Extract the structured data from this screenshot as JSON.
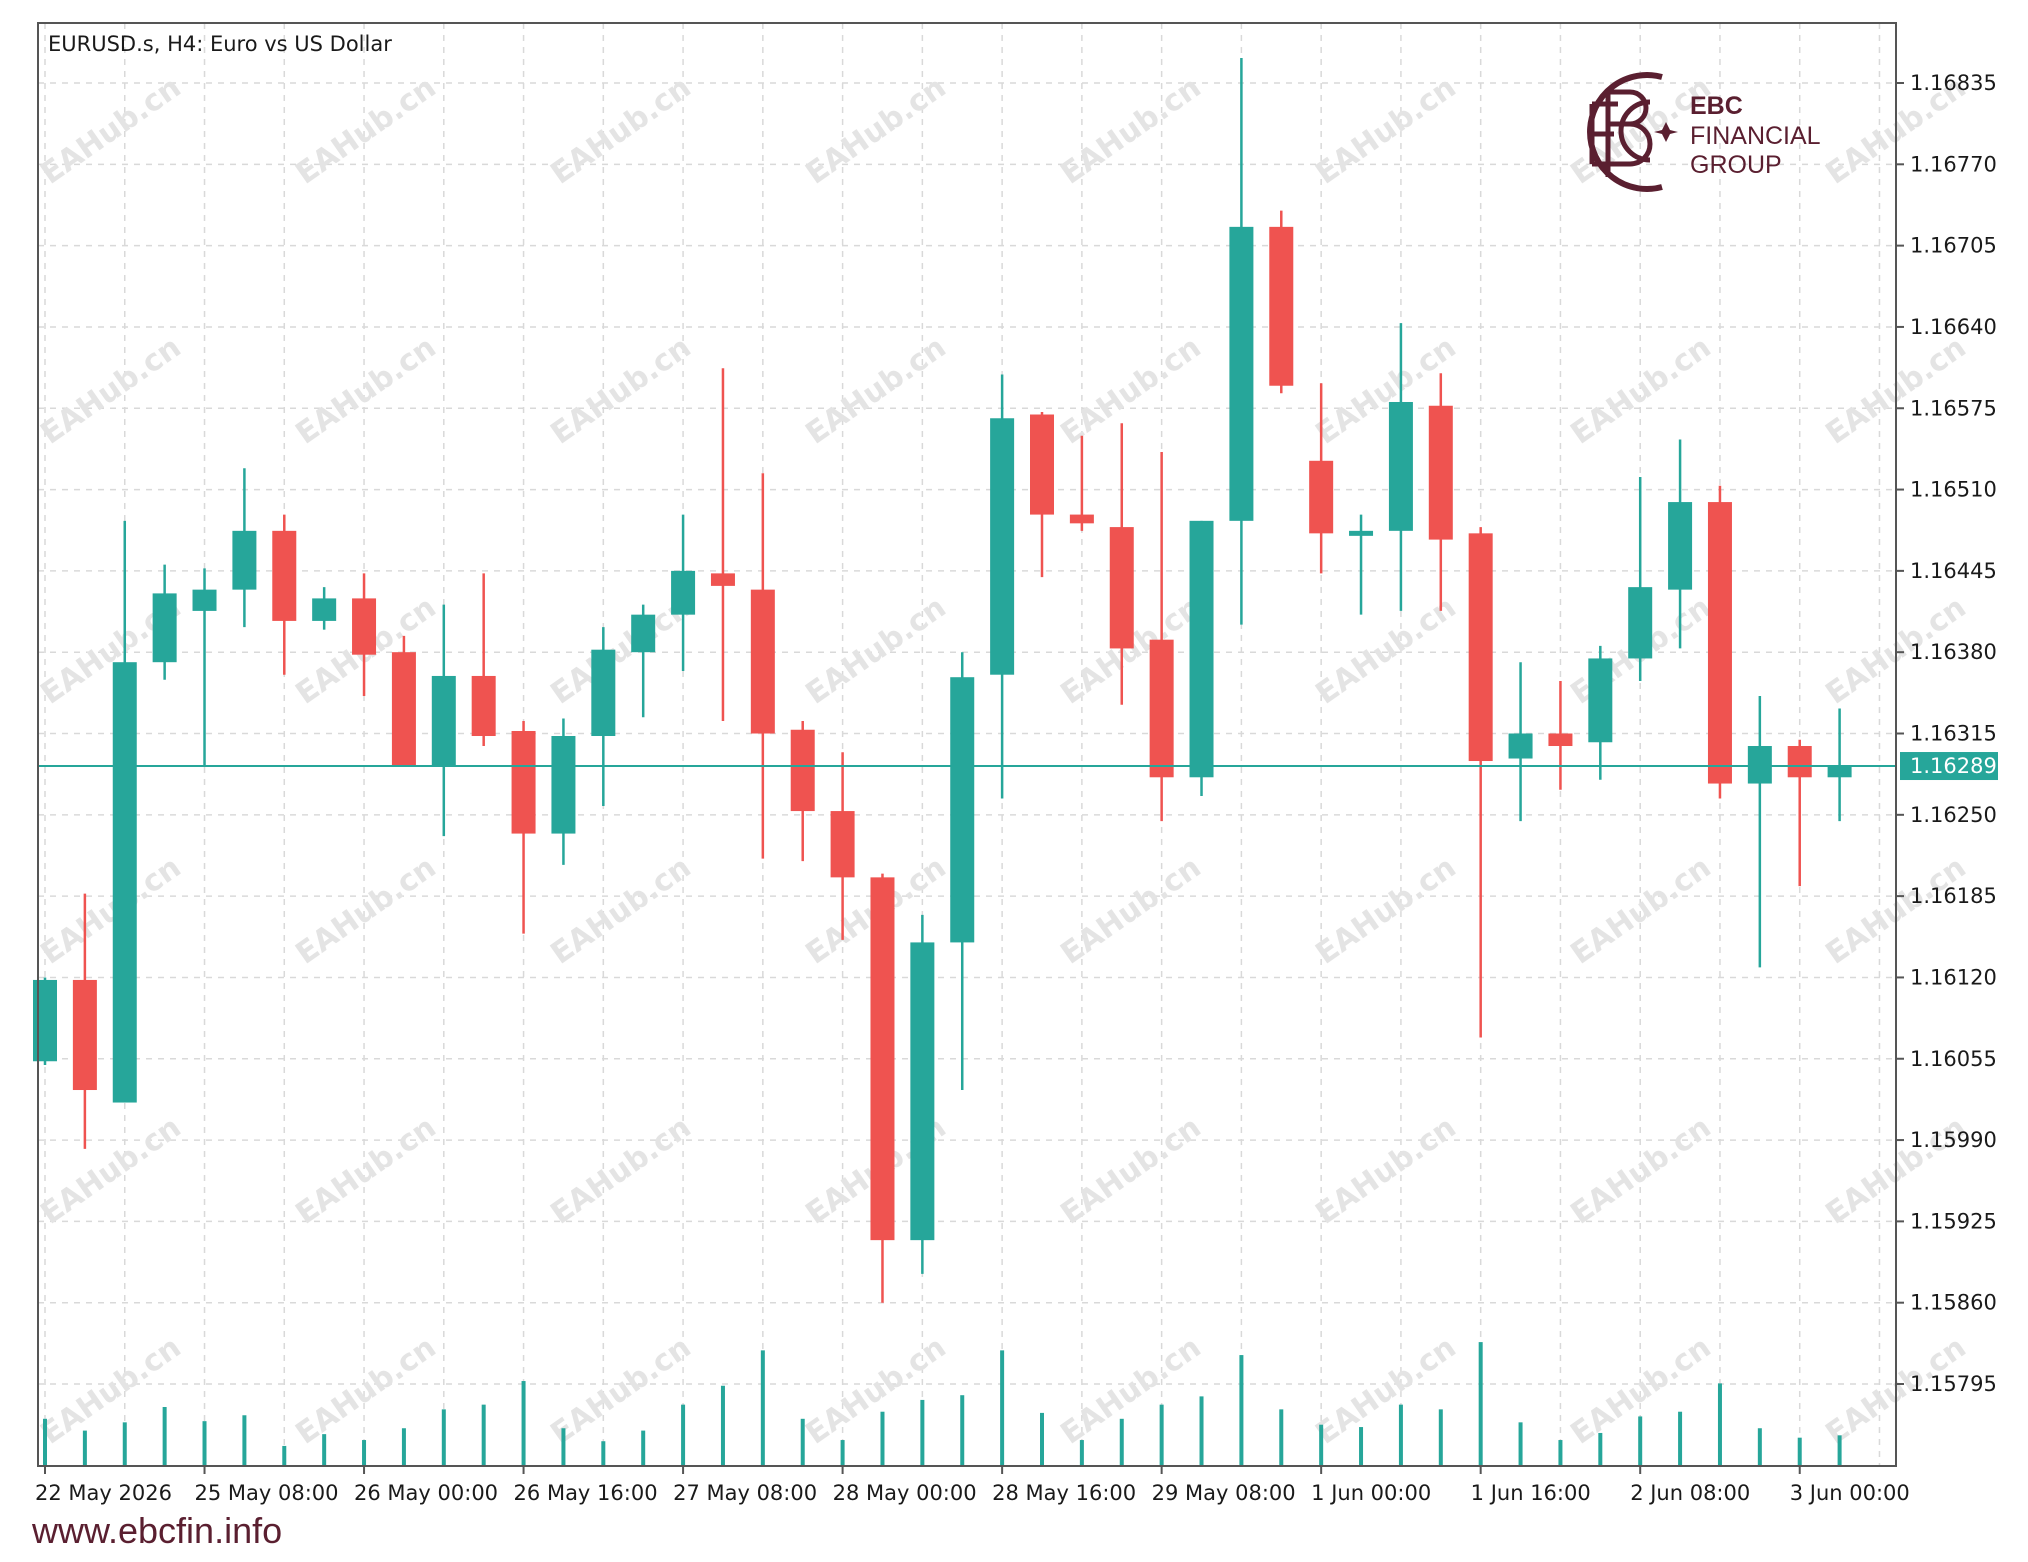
{
  "symbol_title": "EURUSD.s, H4:  Euro vs US Dollar",
  "brand": {
    "name_line1": "EBC",
    "name_line2": "FINANCIAL",
    "name_line3": "GROUP",
    "color": "#5a1f30",
    "logo_icon": "ebc-logo-icon"
  },
  "website": "www.ebcfin.info",
  "watermark": "EAHub.cn",
  "colors": {
    "bull": "#26a69a",
    "bear": "#ef5350",
    "grid": "#d9d9d9",
    "current_price_bg": "#26a69a",
    "volume": "#26a69a"
  },
  "chart_data": {
    "type": "candlestick",
    "timeframe": "H4",
    "symbol": "EURUSD.s",
    "ylim": [
      1.1573,
      1.169
    ],
    "y_ticks": [
      "1.16835",
      "1.16770",
      "1.16705",
      "1.16640",
      "1.16575",
      "1.16510",
      "1.16445",
      "1.16380",
      "1.16315",
      "1.16250",
      "1.16185",
      "1.16120",
      "1.16055",
      "1.15990",
      "1.15925",
      "1.15860",
      "1.15795"
    ],
    "current_price": "1.16289",
    "x_labels": [
      {
        "index": 0,
        "text": "22 May 2026"
      },
      {
        "index": 4,
        "text": "25 May 08:00"
      },
      {
        "index": 8,
        "text": "26 May 00:00"
      },
      {
        "index": 12,
        "text": "26 May 16:00"
      },
      {
        "index": 16,
        "text": "27 May 08:00"
      },
      {
        "index": 20,
        "text": "28 May 00:00"
      },
      {
        "index": 24,
        "text": "28 May 16:00"
      },
      {
        "index": 28,
        "text": "29 May 08:00"
      },
      {
        "index": 32,
        "text": "1 Jun 00:00"
      },
      {
        "index": 36,
        "text": "1 Jun 16:00"
      },
      {
        "index": 40,
        "text": "2 Jun 08:00"
      },
      {
        "index": 44,
        "text": "3 Jun 00:00"
      }
    ],
    "candles": [
      {
        "o": 1.16053,
        "h": 1.1612,
        "l": 1.1605,
        "c": 1.16118
      },
      {
        "o": 1.16118,
        "h": 1.16187,
        "l": 1.15983,
        "c": 1.1603
      },
      {
        "o": 1.1602,
        "h": 1.16485,
        "l": 1.1602,
        "c": 1.16372
      },
      {
        "o": 1.16372,
        "h": 1.1645,
        "l": 1.16358,
        "c": 1.16427
      },
      {
        "o": 1.16413,
        "h": 1.16447,
        "l": 1.16289,
        "c": 1.1643
      },
      {
        "o": 1.1643,
        "h": 1.16527,
        "l": 1.164,
        "c": 1.16477
      },
      {
        "o": 1.16477,
        "h": 1.1649,
        "l": 1.16362,
        "c": 1.16405
      },
      {
        "o": 1.16405,
        "h": 1.16432,
        "l": 1.16398,
        "c": 1.16423
      },
      {
        "o": 1.16423,
        "h": 1.16443,
        "l": 1.16345,
        "c": 1.16378
      },
      {
        "o": 1.1638,
        "h": 1.16393,
        "l": 1.16289,
        "c": 1.16289
      },
      {
        "o": 1.16289,
        "h": 1.16418,
        "l": 1.16233,
        "c": 1.16361
      },
      {
        "o": 1.16361,
        "h": 1.16443,
        "l": 1.16305,
        "c": 1.16313
      },
      {
        "o": 1.16317,
        "h": 1.16325,
        "l": 1.16155,
        "c": 1.16235
      },
      {
        "o": 1.16235,
        "h": 1.16327,
        "l": 1.1621,
        "c": 1.16313
      },
      {
        "o": 1.16313,
        "h": 1.164,
        "l": 1.16257,
        "c": 1.16382
      },
      {
        "o": 1.1638,
        "h": 1.16418,
        "l": 1.16328,
        "c": 1.1641
      },
      {
        "o": 1.1641,
        "h": 1.1649,
        "l": 1.16365,
        "c": 1.16445
      },
      {
        "o": 1.16443,
        "h": 1.16607,
        "l": 1.16325,
        "c": 1.16433
      },
      {
        "o": 1.1643,
        "h": 1.16523,
        "l": 1.16215,
        "c": 1.16315
      },
      {
        "o": 1.16318,
        "h": 1.16325,
        "l": 1.16213,
        "c": 1.16253
      },
      {
        "o": 1.16253,
        "h": 1.163,
        "l": 1.1615,
        "c": 1.162
      },
      {
        "o": 1.162,
        "h": 1.16203,
        "l": 1.1586,
        "c": 1.1591
      },
      {
        "o": 1.1591,
        "h": 1.1617,
        "l": 1.15883,
        "c": 1.16148
      },
      {
        "o": 1.16148,
        "h": 1.1638,
        "l": 1.1603,
        "c": 1.1636
      },
      {
        "o": 1.16362,
        "h": 1.16602,
        "l": 1.16263,
        "c": 1.16567
      },
      {
        "o": 1.1657,
        "h": 1.16572,
        "l": 1.1644,
        "c": 1.1649
      },
      {
        "o": 1.1649,
        "h": 1.16553,
        "l": 1.16477,
        "c": 1.16483
      },
      {
        "o": 1.1648,
        "h": 1.16563,
        "l": 1.16338,
        "c": 1.16383
      },
      {
        "o": 1.1639,
        "h": 1.1654,
        "l": 1.16245,
        "c": 1.1628
      },
      {
        "o": 1.1628,
        "h": 1.16485,
        "l": 1.16265,
        "c": 1.16485
      },
      {
        "o": 1.16485,
        "h": 1.16855,
        "l": 1.16402,
        "c": 1.1672
      },
      {
        "o": 1.1672,
        "h": 1.16733,
        "l": 1.16587,
        "c": 1.16593
      },
      {
        "o": 1.16533,
        "h": 1.16595,
        "l": 1.16443,
        "c": 1.16475
      },
      {
        "o": 1.16473,
        "h": 1.1649,
        "l": 1.1641,
        "c": 1.16477
      },
      {
        "o": 1.16477,
        "h": 1.16643,
        "l": 1.16413,
        "c": 1.1658
      },
      {
        "o": 1.16577,
        "h": 1.16603,
        "l": 1.16413,
        "c": 1.1647
      },
      {
        "o": 1.16475,
        "h": 1.1648,
        "l": 1.16072,
        "c": 1.16293
      },
      {
        "o": 1.16295,
        "h": 1.16372,
        "l": 1.16245,
        "c": 1.16315
      },
      {
        "o": 1.16315,
        "h": 1.16357,
        "l": 1.1627,
        "c": 1.16305
      },
      {
        "o": 1.16308,
        "h": 1.16385,
        "l": 1.16278,
        "c": 1.16375
      },
      {
        "o": 1.16375,
        "h": 1.1652,
        "l": 1.16357,
        "c": 1.16432
      },
      {
        "o": 1.1643,
        "h": 1.1655,
        "l": 1.16383,
        "c": 1.165
      },
      {
        "o": 1.165,
        "h": 1.16513,
        "l": 1.16263,
        "c": 1.16275
      },
      {
        "o": 1.16275,
        "h": 1.16345,
        "l": 1.16128,
        "c": 1.16305
      },
      {
        "o": 1.16305,
        "h": 1.1631,
        "l": 1.16193,
        "c": 1.1628
      },
      {
        "o": 1.1628,
        "h": 1.16335,
        "l": 1.16245,
        "c": 1.16289
      }
    ],
    "volume_relative": [
      0.4,
      0.3,
      0.37,
      0.5,
      0.38,
      0.43,
      0.17,
      0.27,
      0.22,
      0.32,
      0.48,
      0.52,
      0.72,
      0.32,
      0.21,
      0.3,
      0.52,
      0.68,
      0.98,
      0.4,
      0.22,
      0.46,
      0.56,
      0.6,
      0.98,
      0.45,
      0.22,
      0.4,
      0.52,
      0.59,
      0.94,
      0.48,
      0.35,
      0.33,
      0.52,
      0.48,
      1.05,
      0.37,
      0.22,
      0.28,
      0.42,
      0.46,
      0.7,
      0.32,
      0.24,
      0.26
    ]
  }
}
